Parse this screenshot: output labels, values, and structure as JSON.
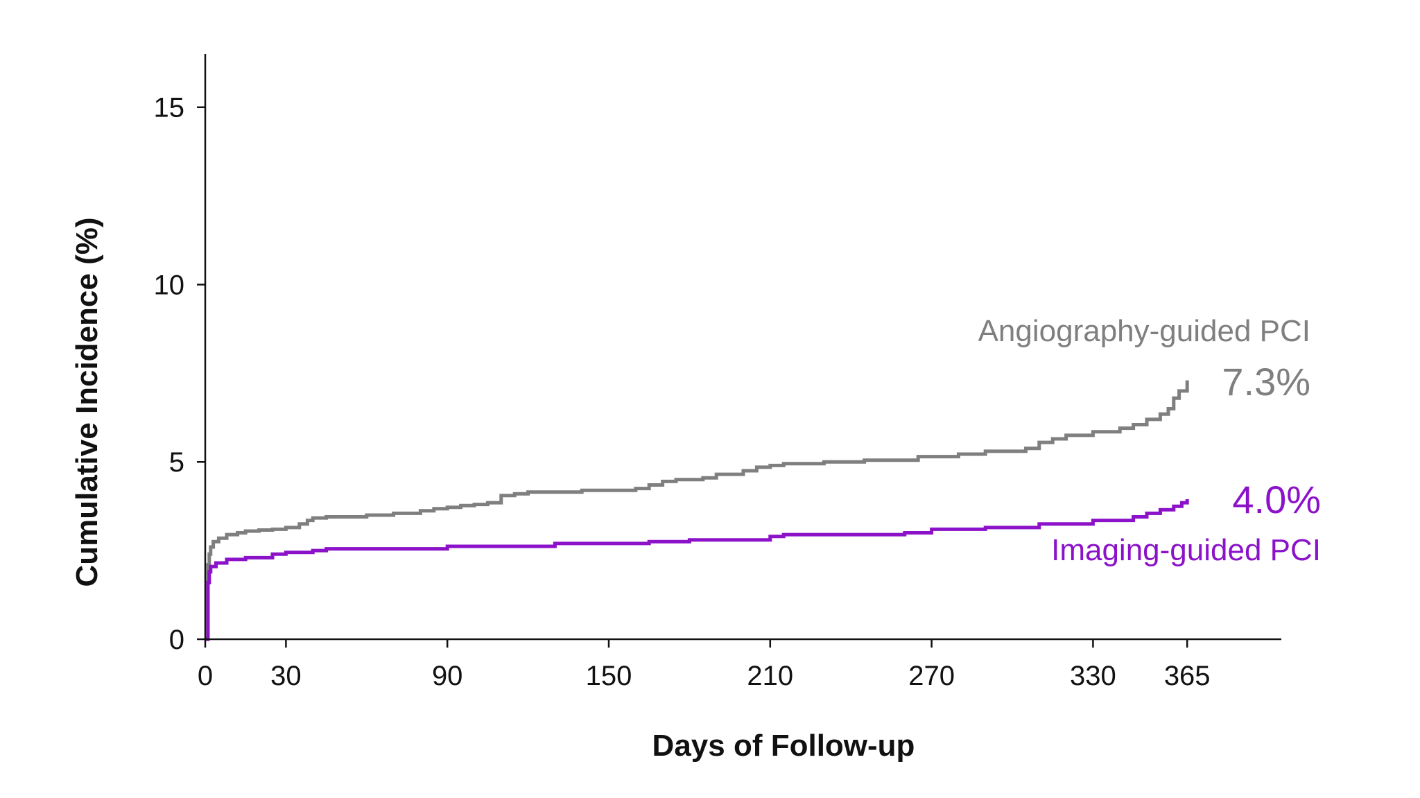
{
  "chart_data": {
    "type": "line",
    "title": "",
    "xlabel": "Days of Follow-up",
    "ylabel": "Cumulative Incidence (%)",
    "xlim": [
      0,
      400
    ],
    "ylim": [
      0,
      16.5
    ],
    "x_ticks": [
      0,
      30,
      90,
      150,
      210,
      270,
      330,
      365
    ],
    "y_ticks": [
      0,
      5,
      10,
      15
    ],
    "grid": false,
    "step": true,
    "series": [
      {
        "name": "Angiography-guided PCI",
        "end_value_label": "7.3%",
        "color": "#7f7f7f",
        "x": [
          0,
          1,
          1.5,
          2,
          3,
          5,
          8,
          12,
          15,
          20,
          25,
          30,
          35,
          38,
          40,
          45,
          60,
          70,
          80,
          85,
          90,
          95,
          100,
          105,
          110,
          115,
          120,
          140,
          160,
          165,
          170,
          175,
          185,
          190,
          200,
          205,
          210,
          215,
          230,
          245,
          265,
          280,
          290,
          305,
          310,
          315,
          320,
          330,
          340,
          345,
          350,
          355,
          358,
          360,
          362,
          365
        ],
        "y": [
          0,
          2.1,
          2.4,
          2.6,
          2.75,
          2.85,
          2.95,
          3.0,
          3.05,
          3.08,
          3.1,
          3.15,
          3.25,
          3.35,
          3.42,
          3.45,
          3.5,
          3.55,
          3.62,
          3.68,
          3.72,
          3.77,
          3.8,
          3.85,
          4.05,
          4.1,
          4.15,
          4.2,
          4.25,
          4.35,
          4.45,
          4.5,
          4.55,
          4.65,
          4.75,
          4.85,
          4.9,
          4.95,
          5.0,
          5.05,
          5.15,
          5.22,
          5.3,
          5.38,
          5.55,
          5.65,
          5.75,
          5.85,
          5.95,
          6.05,
          6.2,
          6.35,
          6.5,
          6.8,
          7.0,
          7.3
        ]
      },
      {
        "name": "Imaging-guided PCI",
        "end_value_label": "4.0%",
        "color": "#8b12c8",
        "x": [
          0,
          1,
          1.5,
          2,
          4,
          8,
          15,
          25,
          30,
          40,
          45,
          90,
          130,
          165,
          180,
          210,
          215,
          260,
          270,
          290,
          310,
          330,
          345,
          350,
          355,
          360,
          363,
          365
        ],
        "y": [
          0,
          1.6,
          1.9,
          2.05,
          2.15,
          2.25,
          2.3,
          2.4,
          2.45,
          2.5,
          2.55,
          2.62,
          2.7,
          2.75,
          2.8,
          2.9,
          2.95,
          3.0,
          3.1,
          3.15,
          3.25,
          3.35,
          3.45,
          3.55,
          3.65,
          3.75,
          3.85,
          3.95
        ]
      }
    ]
  }
}
